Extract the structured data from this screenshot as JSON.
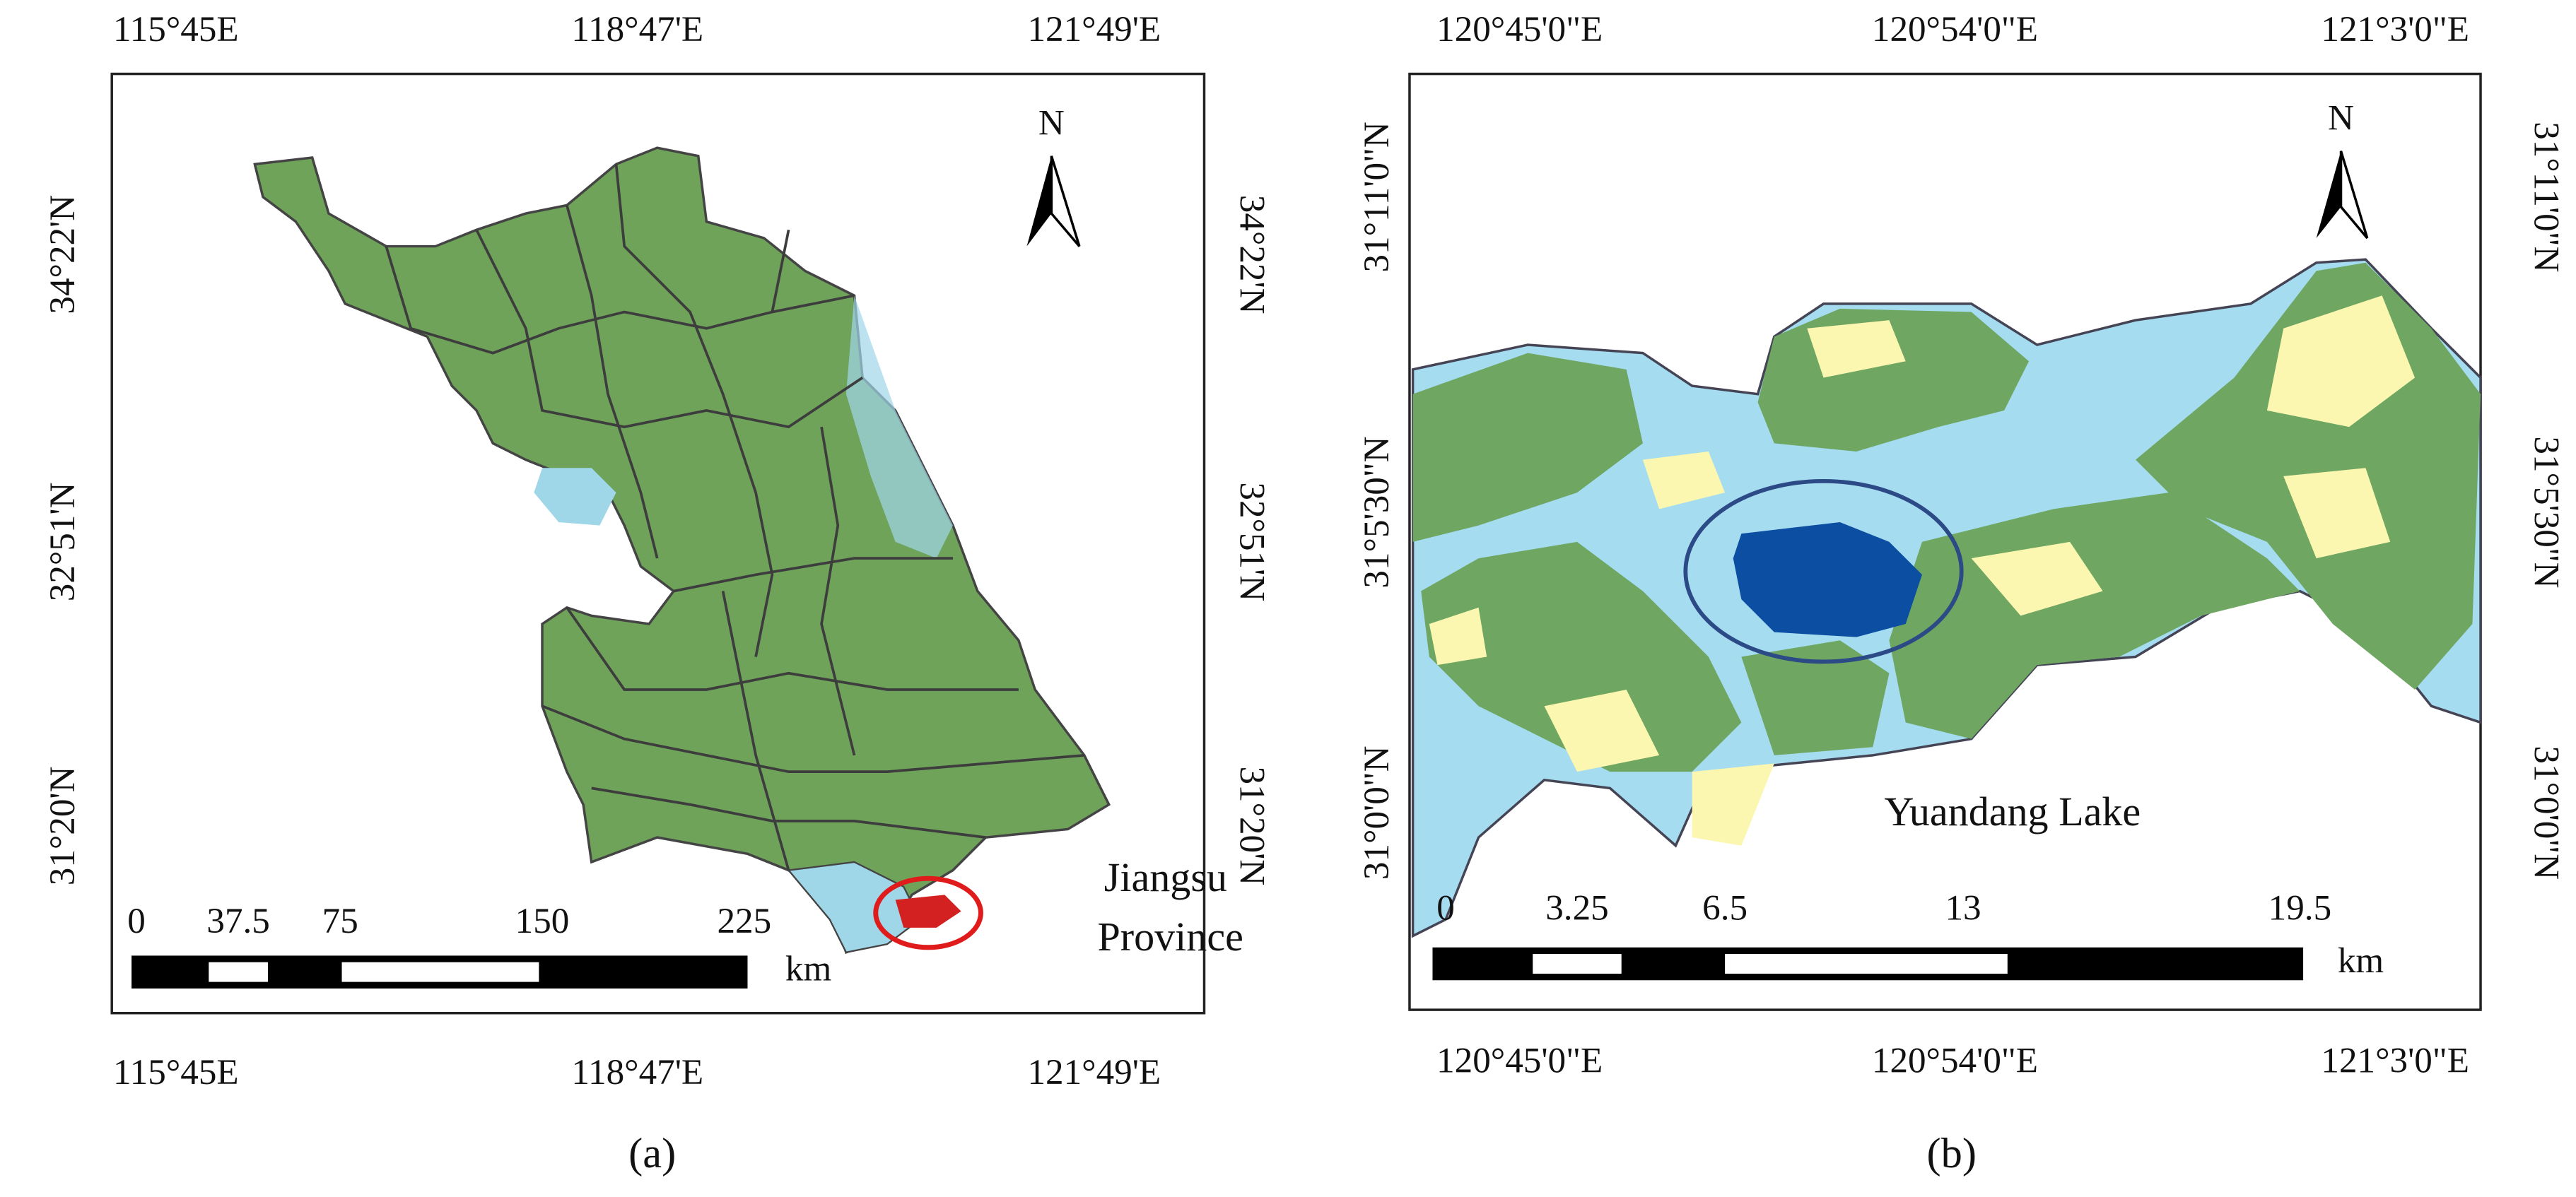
{
  "panels": [
    {
      "caption": "(a)",
      "x_labels": [
        "115°45E",
        "118°47'E",
        "121°49'E"
      ],
      "y_labels": [
        "34°22'N",
        "32°51'N",
        "31°20'N"
      ],
      "north": "N",
      "scale_bar": {
        "labels": [
          "0",
          "37.5",
          "75",
          "150",
          "225"
        ],
        "unit": "km"
      },
      "annotation": [
        "Jiangsu",
        "Province"
      ]
    },
    {
      "caption": "(b)",
      "x_labels": [
        "120°45'0\"E",
        "120°54'0\"E",
        "121°3'0\"E"
      ],
      "y_labels": [
        "31°11'0\"N",
        "31°5'30\"N",
        "31°0'0\"N"
      ],
      "north": "N",
      "scale_bar": {
        "labels": [
          "0",
          "3.25",
          "6.5",
          "13",
          "19.5"
        ],
        "unit": "km"
      },
      "annotation": [
        "Yuandang Lake"
      ]
    }
  ]
}
